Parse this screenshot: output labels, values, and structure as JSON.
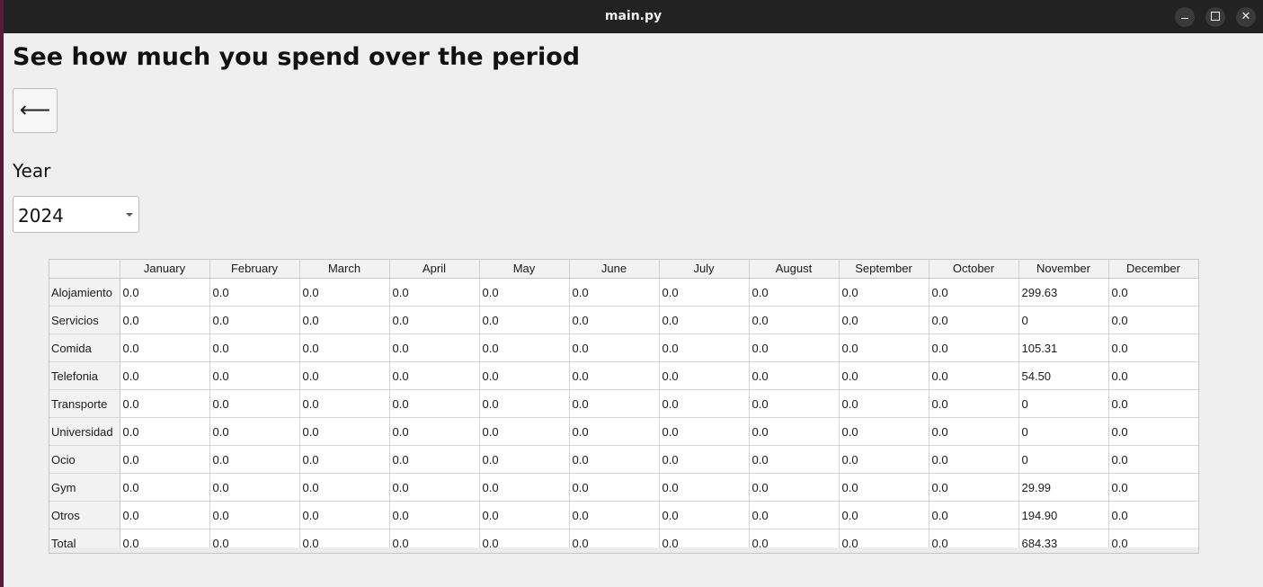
{
  "window": {
    "title": "main.py"
  },
  "page": {
    "heading": "See how much you spend over the period",
    "back_label": "⟵",
    "year_label": "Year",
    "year_value": "2024"
  },
  "table": {
    "columns": [
      "January",
      "February",
      "March",
      "April",
      "May",
      "June",
      "July",
      "August",
      "September",
      "October",
      "November",
      "December"
    ],
    "rows": [
      {
        "label": "Alojamiento",
        "values": [
          "0.0",
          "0.0",
          "0.0",
          "0.0",
          "0.0",
          "0.0",
          "0.0",
          "0.0",
          "0.0",
          "0.0",
          "299.63",
          "0.0"
        ]
      },
      {
        "label": "Servicios",
        "values": [
          "0.0",
          "0.0",
          "0.0",
          "0.0",
          "0.0",
          "0.0",
          "0.0",
          "0.0",
          "0.0",
          "0.0",
          "0",
          "0.0"
        ]
      },
      {
        "label": "Comida",
        "values": [
          "0.0",
          "0.0",
          "0.0",
          "0.0",
          "0.0",
          "0.0",
          "0.0",
          "0.0",
          "0.0",
          "0.0",
          "105.31",
          "0.0"
        ]
      },
      {
        "label": "Telefonia",
        "values": [
          "0.0",
          "0.0",
          "0.0",
          "0.0",
          "0.0",
          "0.0",
          "0.0",
          "0.0",
          "0.0",
          "0.0",
          "54.50",
          "0.0"
        ]
      },
      {
        "label": "Transporte",
        "values": [
          "0.0",
          "0.0",
          "0.0",
          "0.0",
          "0.0",
          "0.0",
          "0.0",
          "0.0",
          "0.0",
          "0.0",
          "0",
          "0.0"
        ]
      },
      {
        "label": "Universidad",
        "values": [
          "0.0",
          "0.0",
          "0.0",
          "0.0",
          "0.0",
          "0.0",
          "0.0",
          "0.0",
          "0.0",
          "0.0",
          "0",
          "0.0"
        ]
      },
      {
        "label": "Ocio",
        "values": [
          "0.0",
          "0.0",
          "0.0",
          "0.0",
          "0.0",
          "0.0",
          "0.0",
          "0.0",
          "0.0",
          "0.0",
          "0",
          "0.0"
        ]
      },
      {
        "label": "Gym",
        "values": [
          "0.0",
          "0.0",
          "0.0",
          "0.0",
          "0.0",
          "0.0",
          "0.0",
          "0.0",
          "0.0",
          "0.0",
          "29.99",
          "0.0"
        ]
      },
      {
        "label": "Otros",
        "values": [
          "0.0",
          "0.0",
          "0.0",
          "0.0",
          "0.0",
          "0.0",
          "0.0",
          "0.0",
          "0.0",
          "0.0",
          "194.90",
          "0.0"
        ]
      },
      {
        "label": "Total",
        "values": [
          "0.0",
          "0.0",
          "0.0",
          "0.0",
          "0.0",
          "0.0",
          "0.0",
          "0.0",
          "0.0",
          "0.0",
          "684.33",
          "0.0"
        ]
      }
    ]
  },
  "colors": {
    "titlebar": "#222222",
    "window_bg": "#efefef",
    "desktop": "#5a1a3a"
  },
  "icons": {
    "minimize": "minimize-icon",
    "maximize": "maximize-icon",
    "close": "close-icon",
    "dropdown": "caret-down-icon",
    "back": "back-arrow-icon"
  }
}
